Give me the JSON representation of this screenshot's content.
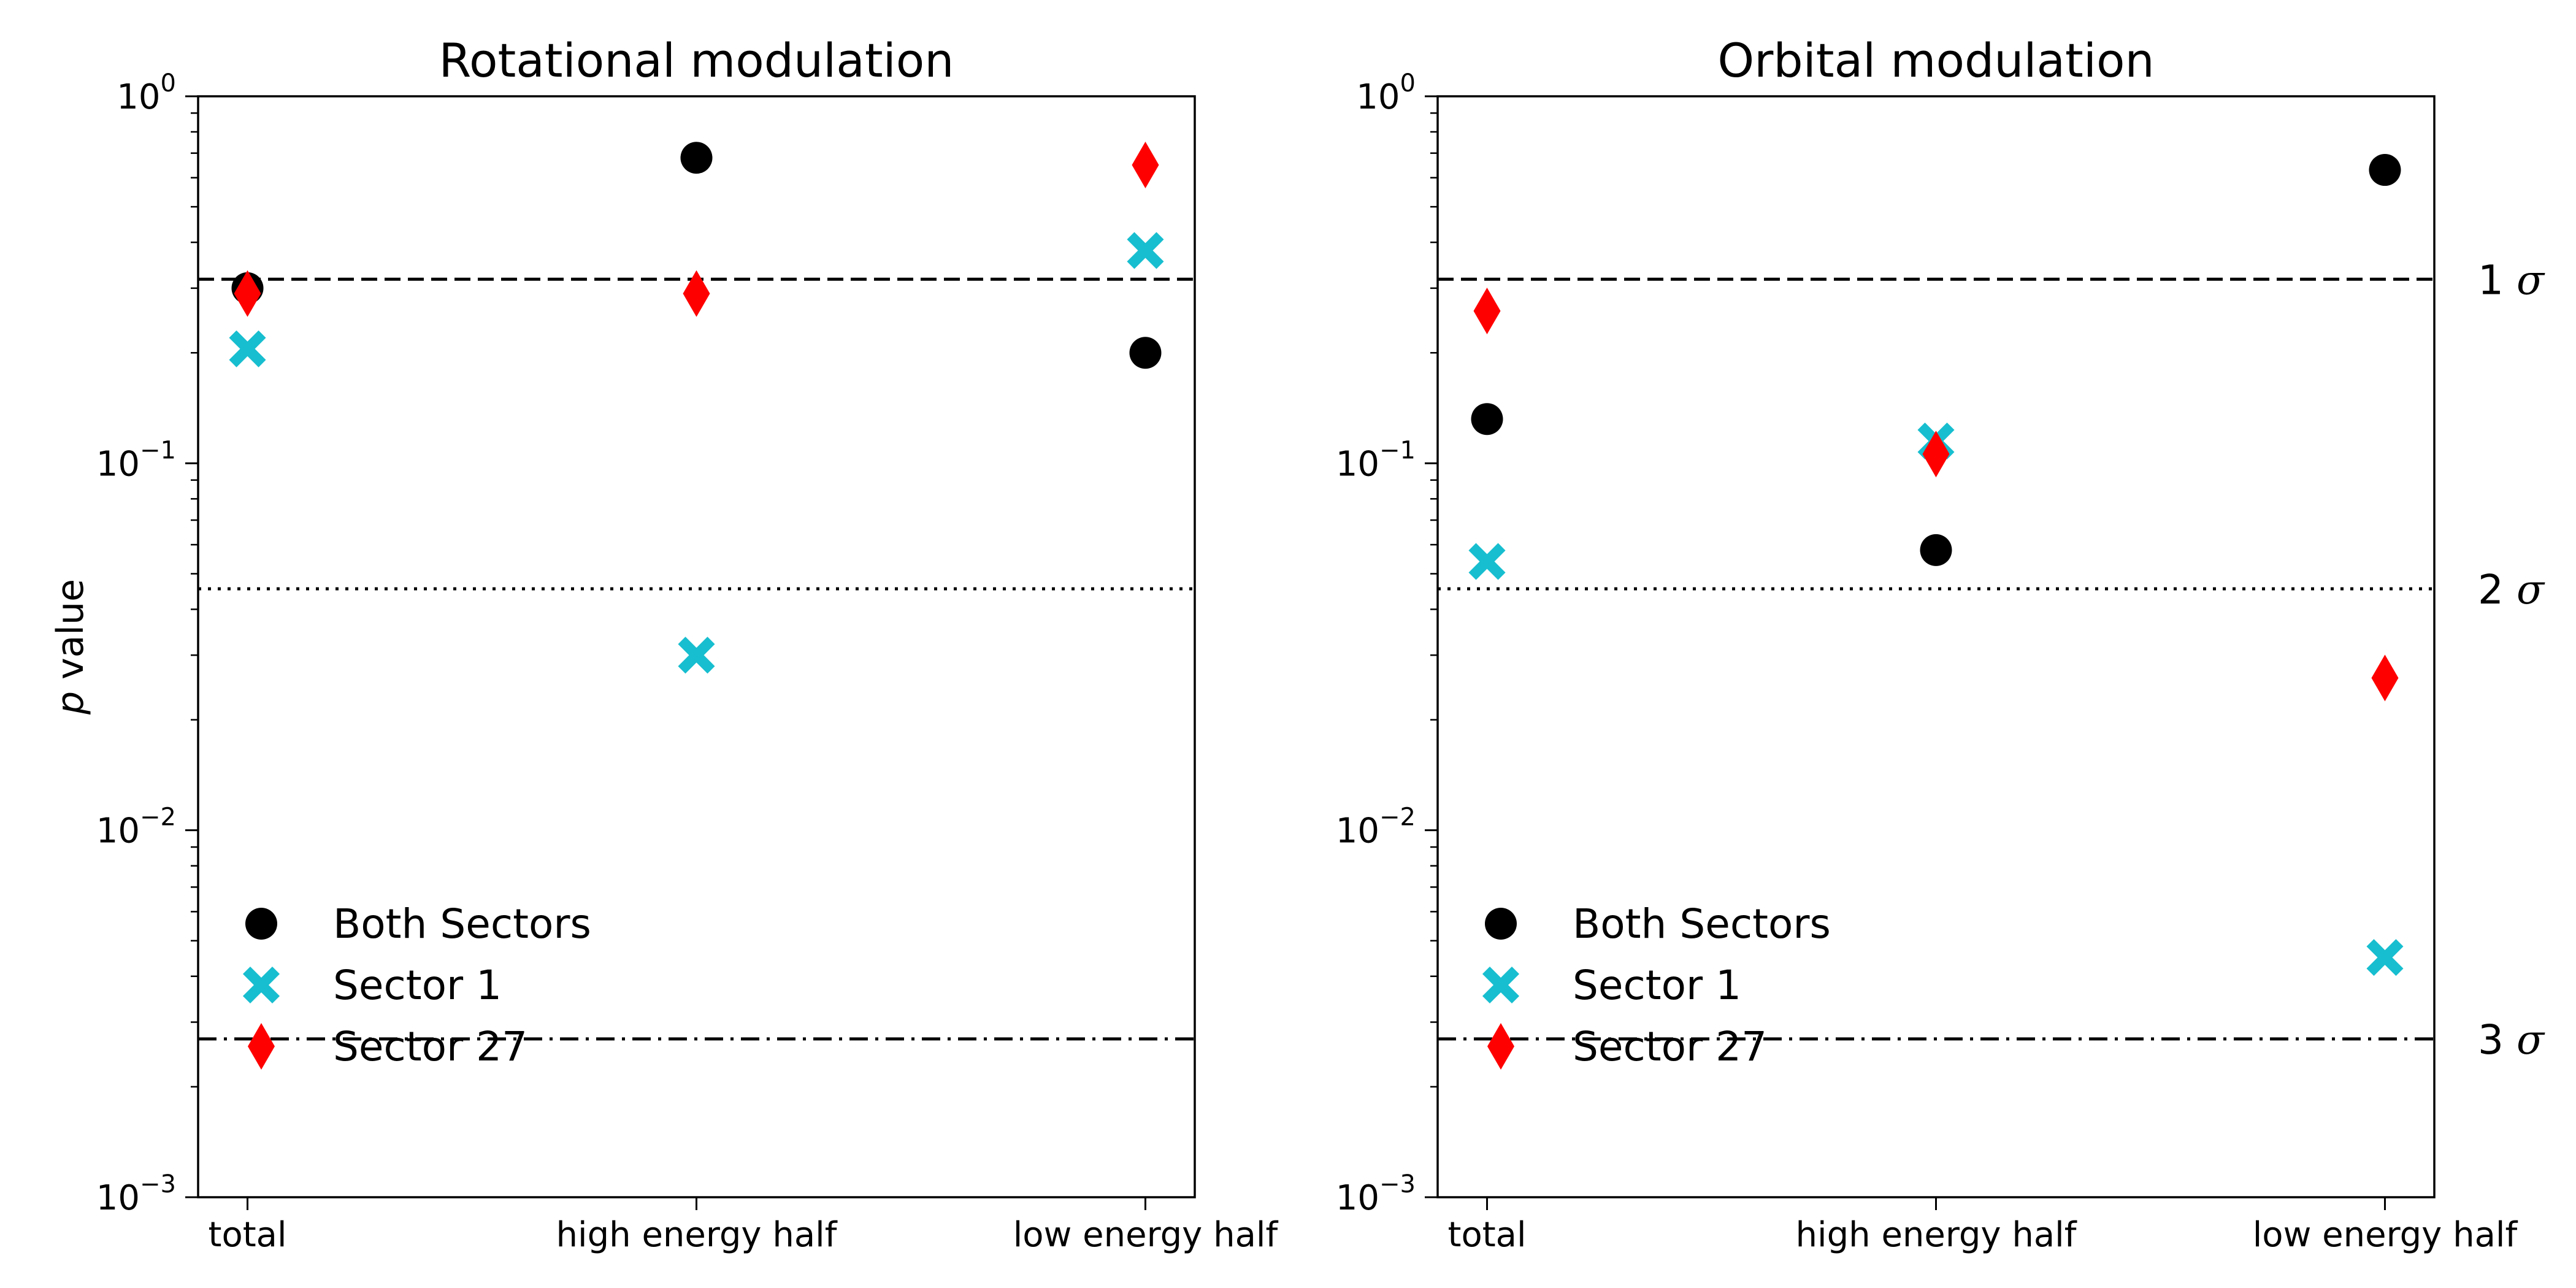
{
  "chart_data": [
    {
      "type": "scatter",
      "title": "Rotational modulation",
      "ylabel": "p value",
      "yscale": "log",
      "ylim": [
        0.001,
        1
      ],
      "yticks": [
        {
          "base": "10",
          "exp": "0"
        },
        {
          "base": "10",
          "exp": "−1"
        },
        {
          "base": "10",
          "exp": "−2"
        },
        {
          "base": "10",
          "exp": "−3"
        }
      ],
      "categories": [
        "total",
        "high energy half",
        "low energy half"
      ],
      "series": [
        {
          "name": "Both Sectors",
          "color": "#000000",
          "marker": "circle",
          "values": [
            0.3,
            0.68,
            0.2
          ]
        },
        {
          "name": "Sector 1",
          "color": "#17becf",
          "marker": "x",
          "values": [
            0.205,
            0.03,
            0.38
          ]
        },
        {
          "name": "Sector 27",
          "color": "#ff0000",
          "marker": "diamond",
          "values": [
            0.29,
            0.29,
            0.65
          ]
        }
      ],
      "hlines": [
        {
          "value": 0.3173,
          "style": "dashed"
        },
        {
          "value": 0.0455,
          "style": "dotted"
        },
        {
          "value": 0.0027,
          "style": "dashdot"
        }
      ],
      "legend": "lower-left"
    },
    {
      "type": "scatter",
      "title": "Orbital modulation",
      "ylabel": "",
      "yscale": "log",
      "ylim": [
        0.001,
        1
      ],
      "yticks": [
        {
          "base": "10",
          "exp": "0"
        },
        {
          "base": "10",
          "exp": "−1"
        },
        {
          "base": "10",
          "exp": "−2"
        },
        {
          "base": "10",
          "exp": "−3"
        }
      ],
      "categories": [
        "total",
        "high energy half",
        "low energy half"
      ],
      "series": [
        {
          "name": "Both Sectors",
          "color": "#000000",
          "marker": "circle",
          "values": [
            0.132,
            0.058,
            0.63
          ]
        },
        {
          "name": "Sector 1",
          "color": "#17becf",
          "marker": "x",
          "values": [
            0.054,
            0.115,
            0.0045
          ]
        },
        {
          "name": "Sector 27",
          "color": "#ff0000",
          "marker": "diamond",
          "values": [
            0.26,
            0.106,
            0.026
          ]
        }
      ],
      "hlines": [
        {
          "value": 0.3173,
          "style": "dashed",
          "label": "1 σ"
        },
        {
          "value": 0.0455,
          "style": "dotted",
          "label": "2 σ"
        },
        {
          "value": 0.0027,
          "style": "dashdot",
          "label": "3 σ"
        }
      ],
      "legend": "lower-left"
    }
  ]
}
